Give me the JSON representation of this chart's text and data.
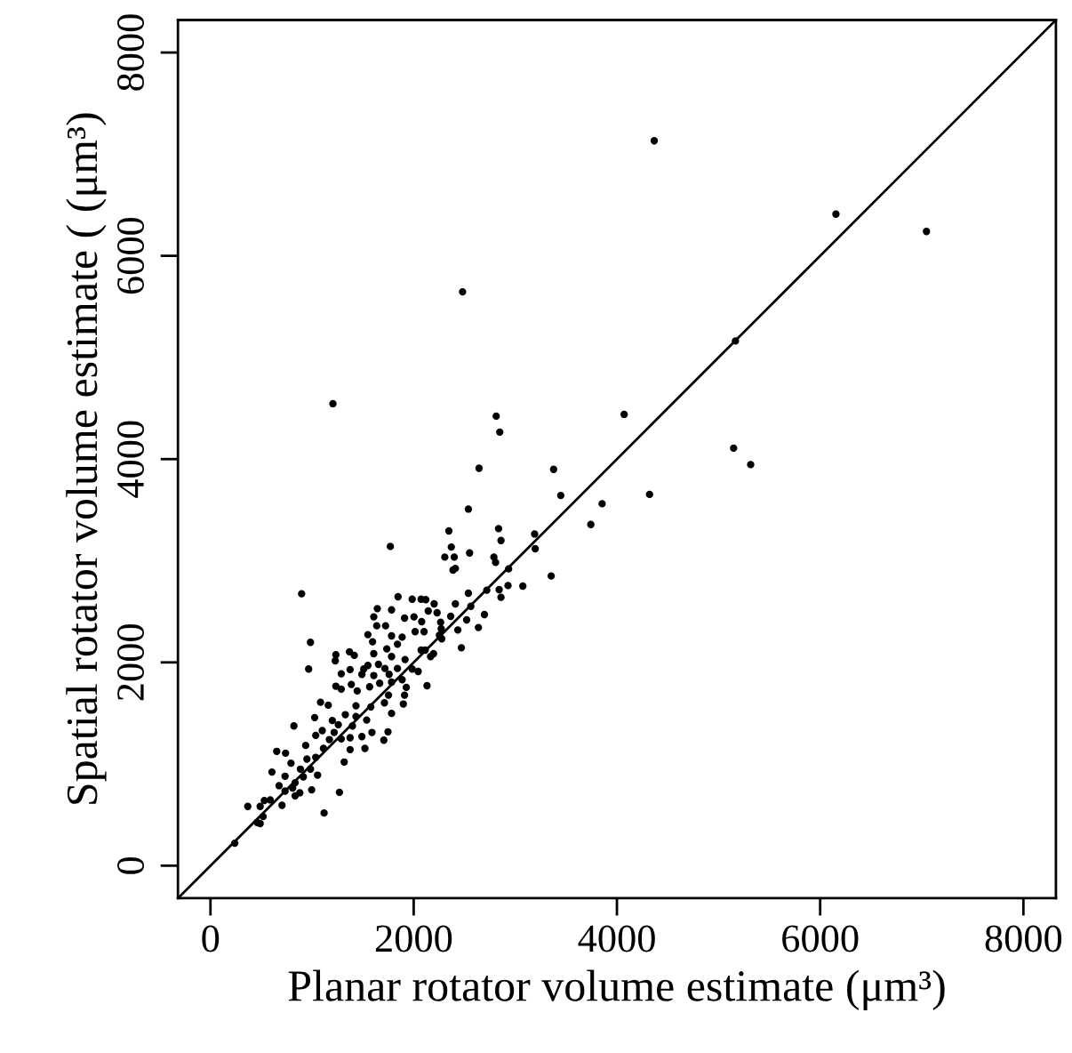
{
  "chart_data": {
    "type": "scatter",
    "xlabel": "Planar rotator volume estimate (μm³)",
    "ylabel": "Spatial rotator volume estimate ( (μm³)",
    "xlim": [
      -320,
      8320
    ],
    "ylim": [
      -320,
      8320
    ],
    "xticks": [
      0,
      2000,
      4000,
      6000,
      8000
    ],
    "yticks": [
      0,
      2000,
      4000,
      6000,
      8000
    ],
    "grid": false,
    "series": [
      {
        "color": "#000000",
        "marker": "circle",
        "x": [
          2643,
          3377,
          3447,
          3854,
          3743,
          2538,
          1770,
          2346,
          2835,
          2859,
          3190,
          3196,
          2370,
          2306,
          2399,
          2550,
          2789,
          2806,
          2387,
          2410,
          2934,
          3353,
          3074,
          2928,
          2841,
          2719,
          897,
          2538,
          2859,
          1846,
          1985,
          2073,
          2119,
          2201,
          2410,
          1642,
          1782,
          2143,
          2562,
          2696,
          1607,
          1723,
          1636,
          1910,
          2003,
          2078,
          2230,
          2265,
          2364,
          2521,
          2637,
          2434,
          2469,
          1549,
          1595,
          1782,
          1886,
          1840,
          2014,
          2102,
          2253,
          2271,
          984,
          2113,
          2195,
          2276,
          1234,
          1368,
          1415,
          1607,
          1735,
          1782,
          1915,
          2073,
          2166,
          1228,
          1549,
          1508,
          1653,
          1717,
          1840,
          1985,
          966,
          1374,
          1287,
          1490,
          1607,
          1758,
          1886,
          2044,
          2131,
          1386,
          1444,
          1566,
          1665,
          1782,
          1927,
          1287,
          1234,
          1752,
          1910,
          1712,
          1898,
          1083,
          1159,
          1432,
          1578,
          1327,
          1432,
          1537,
          1199,
          1258,
          1397,
          1025,
          821,
          1782,
          1100,
          1217,
          1490,
          1706,
          1589,
          1747,
          1170,
          1287,
          1374,
          1036,
          937,
          1112,
          1374,
          1520,
          652,
          739,
          792,
          949,
          1036,
          1316,
          885,
          984,
          914,
          1054,
          605,
          734,
          833,
          675,
          809,
          879,
          996,
          734,
          833,
          530,
          588,
          489,
          704,
          1269,
          367,
          518,
          489,
          460,
          1118,
          239,
          4367,
          6155,
          7046,
          5166,
          4071,
          5148,
          5316,
          4321,
          2481,
          1205,
          2812,
          2847
        ],
        "values": [
          3910,
          3899,
          3642,
          3561,
          3357,
          3508,
          3141,
          3293,
          3316,
          3199,
          3263,
          3118,
          3135,
          3036,
          3036,
          3077,
          3036,
          2984,
          2908,
          2925,
          2920,
          2850,
          2751,
          2756,
          2716,
          2710,
          2675,
          2681,
          2640,
          2646,
          2622,
          2622,
          2617,
          2576,
          2576,
          2529,
          2517,
          2506,
          2552,
          2471,
          2448,
          2360,
          2360,
          2436,
          2448,
          2401,
          2488,
          2395,
          2453,
          2418,
          2343,
          2319,
          2144,
          2273,
          2203,
          2261,
          2249,
          2179,
          2302,
          2302,
          2267,
          2331,
          2197,
          2121,
          2086,
          2232,
          2075,
          2104,
          2069,
          2086,
          2133,
          2057,
          2028,
          2121,
          2057,
          2016,
          1970,
          1935,
          1981,
          1940,
          1940,
          1935,
          1935,
          1929,
          1888,
          1882,
          1871,
          1882,
          1830,
          1911,
          1771,
          1783,
          1719,
          1760,
          1795,
          1806,
          1754,
          1737,
          1766,
          1678,
          1678,
          1602,
          1591,
          1608,
          1579,
          1573,
          1562,
          1486,
          1468,
          1433,
          1428,
          1387,
          1375,
          1457,
          1375,
          1498,
          1329,
          1311,
          1270,
          1235,
          1311,
          1317,
          1241,
          1247,
          1259,
          1282,
          1183,
          1154,
          1142,
          1154,
          1125,
          1107,
          1008,
          1049,
          1066,
          1020,
          950,
          950,
          874,
          891,
          921,
          880,
          816,
          787,
          763,
          717,
          746,
          734,
          687,
          641,
          647,
          583,
          594,
          722,
          583,
          483,
          414,
          425,
          518,
          221,
          7132,
          6410,
          6240,
          5162,
          4440,
          4108,
          3946,
          3653,
          5646,
          4545,
          4423,
          4266
        ]
      },
      {
        "type": "line",
        "color": "#000000",
        "marker": "none",
        "x": [
          -320,
          8320
        ],
        "values": [
          -320,
          8320
        ]
      }
    ]
  }
}
